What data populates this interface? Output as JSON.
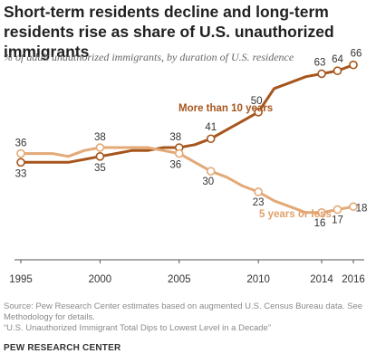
{
  "header": {
    "title": "Short-term residents decline and long-term residents rise as share of U.S. unauthorized immigrants",
    "subtitle": "% of adult unauthorized immigrants, by duration of U.S. residence"
  },
  "footer": {
    "source": "Source: Pew Research Center estimates based on augmented U.S. Census Bureau data. See Methodology for details.",
    "report": "“U.S. Unauthorized Immigrant Total Dips to Lowest Level in a Decade”",
    "brand": "PEW RESEARCH CENTER"
  },
  "colors": {
    "long_term": "#a6561c",
    "short_term": "#e3a976",
    "long_term_label": "#a6561c",
    "short_term_label": "#e0a06a"
  },
  "chart_data": {
    "type": "line",
    "title": "Short-term residents decline and long-term residents rise as share of U.S. unauthorized immigrants",
    "subtitle": "% of adult unauthorized immigrants, by duration of U.S. residence",
    "xlim": [
      1995,
      2016
    ],
    "ylim": [
      0,
      80
    ],
    "grid": false,
    "x_ticks": [
      1995,
      2000,
      2005,
      2010,
      2014,
      2016
    ],
    "series": [
      {
        "name": "More than 10 years",
        "color": "#a6561c",
        "points": [
          {
            "x": 1995,
            "y": 33,
            "label": "33",
            "marker": true
          },
          {
            "x": 1996,
            "y": 33,
            "marker": false
          },
          {
            "x": 1997,
            "y": 33,
            "marker": false
          },
          {
            "x": 1998,
            "y": 33,
            "marker": false
          },
          {
            "x": 1999,
            "y": 34,
            "marker": false
          },
          {
            "x": 2000,
            "y": 35,
            "label": "35",
            "marker": true
          },
          {
            "x": 2001,
            "y": 36,
            "marker": false
          },
          {
            "x": 2002,
            "y": 37,
            "marker": false
          },
          {
            "x": 2003,
            "y": 37,
            "marker": false
          },
          {
            "x": 2004,
            "y": 38,
            "marker": false
          },
          {
            "x": 2005,
            "y": 38,
            "label": "38",
            "marker": true
          },
          {
            "x": 2006,
            "y": 39,
            "marker": false
          },
          {
            "x": 2007,
            "y": 41,
            "label": "41",
            "marker": true
          },
          {
            "x": 2008,
            "y": 44,
            "marker": false
          },
          {
            "x": 2009,
            "y": 47,
            "marker": false
          },
          {
            "x": 2010,
            "y": 50,
            "label": "50",
            "marker": true
          },
          {
            "x": 2011,
            "y": 58,
            "marker": false
          },
          {
            "x": 2012,
            "y": 60,
            "marker": false
          },
          {
            "x": 2013,
            "y": 62,
            "marker": false
          },
          {
            "x": 2014,
            "y": 63,
            "label": "63",
            "marker": true
          },
          {
            "x": 2015,
            "y": 64,
            "label": "64",
            "marker": true
          },
          {
            "x": 2016,
            "y": 66,
            "label": "66",
            "marker": true
          }
        ]
      },
      {
        "name": "5 years or less",
        "color": "#e3a976",
        "points": [
          {
            "x": 1995,
            "y": 36,
            "label": "36",
            "marker": true
          },
          {
            "x": 1996,
            "y": 36,
            "marker": false
          },
          {
            "x": 1997,
            "y": 36,
            "marker": false
          },
          {
            "x": 1998,
            "y": 35,
            "marker": false
          },
          {
            "x": 1999,
            "y": 37,
            "marker": false
          },
          {
            "x": 2000,
            "y": 38,
            "label": "38",
            "marker": true
          },
          {
            "x": 2001,
            "y": 38,
            "marker": false
          },
          {
            "x": 2002,
            "y": 38,
            "marker": false
          },
          {
            "x": 2003,
            "y": 38,
            "marker": false
          },
          {
            "x": 2004,
            "y": 37,
            "marker": false
          },
          {
            "x": 2005,
            "y": 36,
            "label": "36",
            "marker": true
          },
          {
            "x": 2006,
            "y": 33,
            "marker": false
          },
          {
            "x": 2007,
            "y": 30,
            "label": "30",
            "marker": true
          },
          {
            "x": 2008,
            "y": 28,
            "marker": false
          },
          {
            "x": 2009,
            "y": 25,
            "marker": false
          },
          {
            "x": 2010,
            "y": 23,
            "label": "23",
            "marker": true
          },
          {
            "x": 2011,
            "y": 20,
            "marker": false
          },
          {
            "x": 2012,
            "y": 18,
            "marker": false
          },
          {
            "x": 2013,
            "y": 16,
            "marker": false
          },
          {
            "x": 2014,
            "y": 16,
            "label": "16",
            "marker": true
          },
          {
            "x": 2015,
            "y": 17,
            "label": "17",
            "marker": true
          },
          {
            "x": 2016,
            "y": 18,
            "label": "18",
            "marker": true
          }
        ]
      }
    ]
  }
}
